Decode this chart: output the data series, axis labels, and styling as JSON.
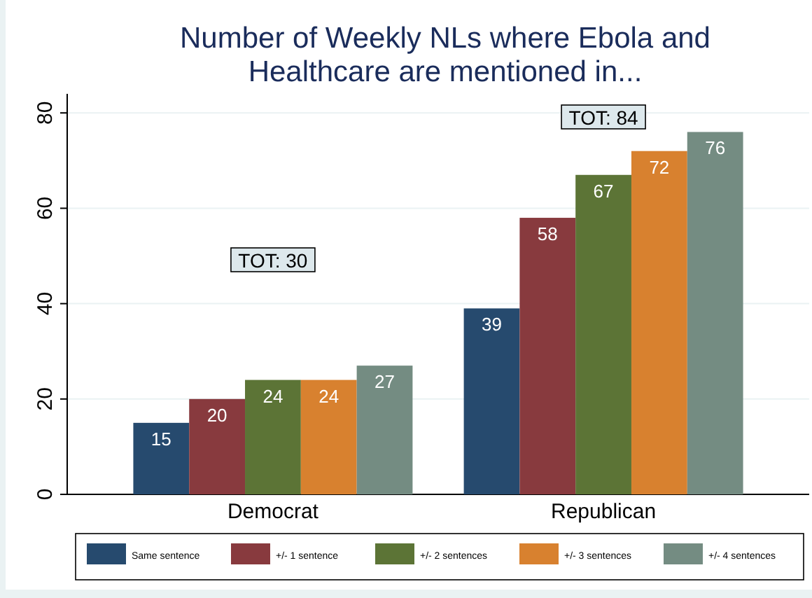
{
  "chart_data": {
    "type": "bar",
    "title": "Number of Weekly NLs where Ebola and Healthcare are mentioned in...",
    "categories": [
      "Democrat",
      "Republican"
    ],
    "series": [
      {
        "name": "Same sentence",
        "color": "#264a6e",
        "values": [
          15,
          39
        ]
      },
      {
        "name": "+/- 1 sentence",
        "color": "#883a3e",
        "values": [
          20,
          58
        ]
      },
      {
        "name": "+/- 2 sentences",
        "color": "#5c7436",
        "values": [
          24,
          67
        ]
      },
      {
        "name": "+/- 3 sentences",
        "color": "#d8812f",
        "values": [
          24,
          72
        ]
      },
      {
        "name": "+/- 4 sentences",
        "color": "#748c82",
        "values": [
          27,
          76
        ]
      }
    ],
    "ylim": [
      0,
      84
    ],
    "yticks": [
      0,
      20,
      40,
      60,
      80
    ],
    "grid": "y",
    "legend": "bottom",
    "data_labels": true,
    "annotations": [
      "TOT: 30",
      "TOT: 84"
    ]
  }
}
